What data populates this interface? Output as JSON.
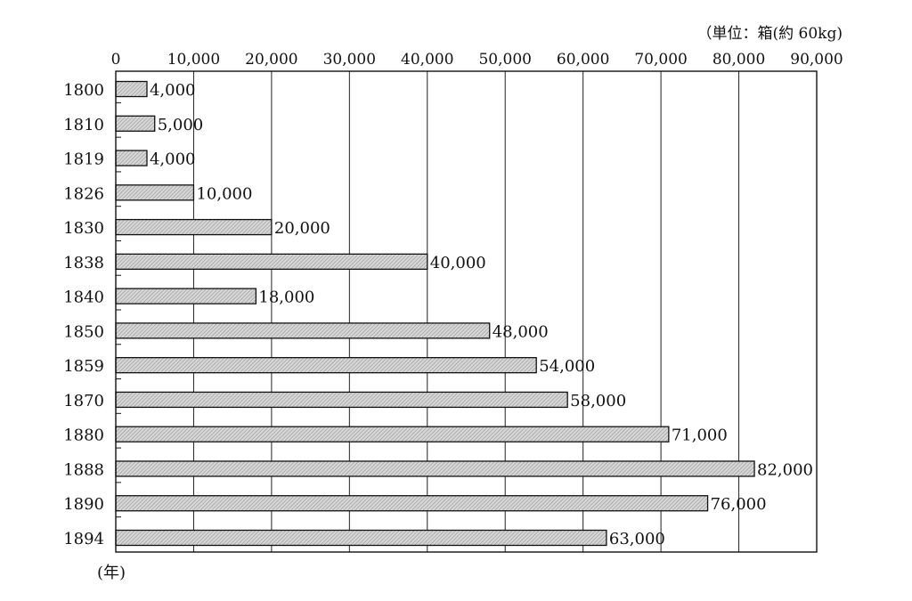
{
  "chart_data": {
    "type": "bar",
    "orientation": "horizontal",
    "categories": [
      "1800",
      "1810",
      "1819",
      "1826",
      "1830",
      "1838",
      "1840",
      "1850",
      "1859",
      "1870",
      "1880",
      "1888",
      "1890",
      "1894"
    ],
    "values": [
      4000,
      5000,
      4000,
      10000,
      20000,
      40000,
      18000,
      48000,
      54000,
      58000,
      71000,
      82000,
      76000,
      63000
    ],
    "value_labels": [
      "4,000",
      "5,000",
      "4,000",
      "10,000",
      "20,000",
      "40,000",
      "18,000",
      "48,000",
      "54,000",
      "58,000",
      "71,000",
      "82,000",
      "76,000",
      "63,000"
    ],
    "xlim": [
      0,
      90000
    ],
    "x_ticks": [
      0,
      10000,
      20000,
      30000,
      40000,
      50000,
      60000,
      70000,
      80000,
      90000
    ],
    "x_tick_labels": [
      "0",
      "10,000",
      "20,000",
      "30,000",
      "40,000",
      "50,000",
      "60,000",
      "70,000",
      "80,000",
      "90,000"
    ],
    "x_axis_position": "top",
    "unit_label": "（単位：箱(約 60kg)",
    "ylabel": "(年)",
    "grid": "vertical",
    "bar_fill": "#c8c8c8",
    "bar_stroke": "#111111"
  }
}
